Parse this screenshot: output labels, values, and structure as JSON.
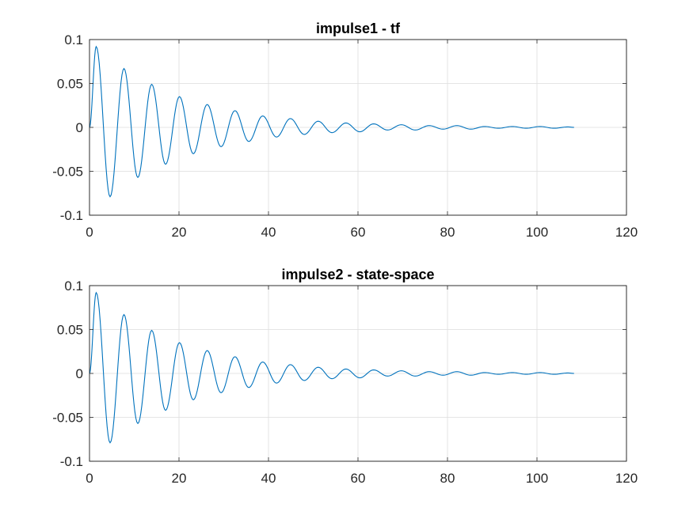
{
  "chart_data": [
    {
      "type": "line",
      "title": "impulse1 - tf",
      "xlabel": "",
      "ylabel": "",
      "xlim": [
        0,
        120
      ],
      "ylim": [
        -0.1,
        0.1
      ],
      "xticks": [
        0,
        20,
        40,
        60,
        80,
        100,
        120
      ],
      "yticks": [
        -0.1,
        -0.05,
        0,
        0.05,
        0.1
      ],
      "xtick_labels": [
        "0",
        "20",
        "40",
        "60",
        "80",
        "100",
        "120"
      ],
      "ytick_labels": [
        "-0.1",
        "-0.05",
        "0",
        "0.05",
        "0.1"
      ],
      "grid": true,
      "series": [
        {
          "color": "#0072BD",
          "x": [
            0,
            1.5,
            4.6,
            7.7,
            10.8,
            13.9,
            17.0,
            20.1,
            23.2,
            26.3,
            29.4,
            32.5,
            35.6,
            38.7,
            41.8,
            44.9,
            48.0,
            51.1,
            54.2,
            57.3,
            60.4,
            63.5,
            66.6,
            69.7,
            72.8,
            75.9,
            79.0,
            82.1,
            85.2,
            88.3,
            91.4,
            94.5,
            97.6,
            100.7,
            103.8,
            106.9,
            108.3
          ],
          "y": [
            0,
            0.092,
            -0.079,
            0.067,
            -0.057,
            0.049,
            -0.042,
            0.035,
            -0.03,
            0.026,
            -0.022,
            0.019,
            -0.016,
            0.013,
            -0.011,
            0.01,
            -0.008,
            0.007,
            -0.006,
            0.005,
            -0.005,
            0.004,
            -0.003,
            0.003,
            -0.003,
            0.002,
            -0.002,
            0.002,
            -0.002,
            0.001,
            -0.001,
            0.001,
            -0.001,
            0.001,
            -0.001,
            0.0005,
            0
          ]
        }
      ]
    },
    {
      "type": "line",
      "title": "impulse2 - state-space",
      "xlabel": "",
      "ylabel": "",
      "xlim": [
        0,
        120
      ],
      "ylim": [
        -0.1,
        0.1
      ],
      "xticks": [
        0,
        20,
        40,
        60,
        80,
        100,
        120
      ],
      "yticks": [
        -0.1,
        -0.05,
        0,
        0.05,
        0.1
      ],
      "xtick_labels": [
        "0",
        "20",
        "40",
        "60",
        "80",
        "100",
        "120"
      ],
      "ytick_labels": [
        "-0.1",
        "-0.05",
        "0",
        "0.05",
        "0.1"
      ],
      "grid": true,
      "series": [
        {
          "color": "#0072BD",
          "x": [
            0,
            1.5,
            4.6,
            7.7,
            10.8,
            13.9,
            17.0,
            20.1,
            23.2,
            26.3,
            29.4,
            32.5,
            35.6,
            38.7,
            41.8,
            44.9,
            48.0,
            51.1,
            54.2,
            57.3,
            60.4,
            63.5,
            66.6,
            69.7,
            72.8,
            75.9,
            79.0,
            82.1,
            85.2,
            88.3,
            91.4,
            94.5,
            97.6,
            100.7,
            103.8,
            106.9,
            108.3
          ],
          "y": [
            0,
            0.092,
            -0.079,
            0.067,
            -0.057,
            0.049,
            -0.042,
            0.035,
            -0.03,
            0.026,
            -0.022,
            0.019,
            -0.016,
            0.013,
            -0.011,
            0.01,
            -0.008,
            0.007,
            -0.006,
            0.005,
            -0.005,
            0.004,
            -0.003,
            0.003,
            -0.003,
            0.002,
            -0.002,
            0.002,
            -0.002,
            0.001,
            -0.001,
            0.001,
            -0.001,
            0.001,
            -0.001,
            0.0005,
            0
          ]
        }
      ]
    }
  ]
}
